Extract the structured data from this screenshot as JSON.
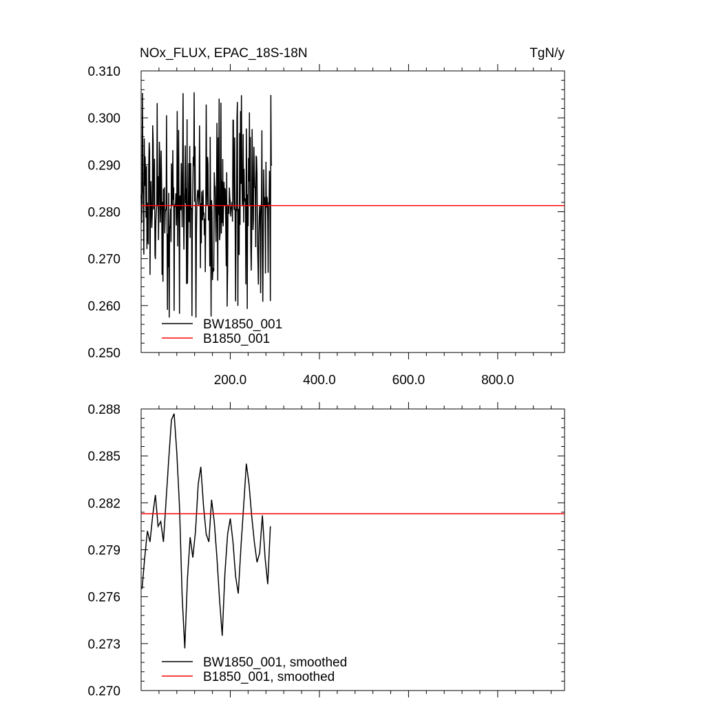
{
  "chart_data": [
    {
      "type": "line",
      "title": "NOx_FLUX, EPAC_18S-18N",
      "units_label": "TgN/y",
      "xlim": [
        0,
        950
      ],
      "ylim": [
        0.25,
        0.31
      ],
      "yticks": [
        "0.310",
        "0.300",
        "0.290",
        "0.280",
        "0.270",
        "0.260",
        "0.250"
      ],
      "xticks": [
        "200.0",
        "400.0",
        "600.0",
        "800.0"
      ],
      "grid": false,
      "legend_position": "bottom-left",
      "series": [
        {
          "name": "BW1850_001",
          "color": "#000000",
          "x_range": [
            0,
            293
          ],
          "min": 0.257,
          "max": 0.3057,
          "mean": 0.2813
        },
        {
          "name": "B1850_001",
          "color": "#ff0000",
          "x": [
            0,
            950
          ],
          "y": [
            0.2813,
            0.2813
          ]
        }
      ]
    },
    {
      "type": "line",
      "ylim": [
        0.27,
        0.288
      ],
      "yticks": [
        "0.288",
        "0.285",
        "0.282",
        "0.279",
        "0.276",
        "0.273",
        "0.270"
      ],
      "grid": false,
      "legend_position": "bottom-left",
      "series": [
        {
          "name": "BW1850_001, smoothed",
          "color": "#000000",
          "x": [
            2,
            8,
            14,
            20,
            26,
            32,
            38,
            44,
            50,
            56,
            62,
            68,
            74,
            80,
            86,
            92,
            98,
            104,
            110,
            116,
            122,
            128,
            134,
            140,
            146,
            152,
            158,
            164,
            170,
            176,
            182,
            188,
            194,
            200,
            206,
            212,
            218,
            224,
            230,
            236,
            242,
            248,
            254,
            260,
            266,
            272,
            278,
            284,
            290
          ],
          "y": [
            0.2765,
            0.2785,
            0.2802,
            0.2795,
            0.2812,
            0.2825,
            0.2805,
            0.2808,
            0.2795,
            0.2822,
            0.2848,
            0.2873,
            0.2877,
            0.2852,
            0.2818,
            0.276,
            0.2727,
            0.2772,
            0.2798,
            0.2785,
            0.2802,
            0.2832,
            0.2843,
            0.2818,
            0.28,
            0.2795,
            0.2822,
            0.2808,
            0.2785,
            0.2758,
            0.2735,
            0.2775,
            0.28,
            0.281,
            0.2795,
            0.2773,
            0.2762,
            0.2792,
            0.2818,
            0.2845,
            0.2832,
            0.2812,
            0.2795,
            0.2782,
            0.2788,
            0.2812,
            0.2785,
            0.2768,
            0.2805
          ]
        },
        {
          "name": "B1850_001, smoothed",
          "color": "#ff0000",
          "x": [
            0,
            950
          ],
          "y": [
            0.2813,
            0.2813
          ]
        }
      ]
    }
  ]
}
